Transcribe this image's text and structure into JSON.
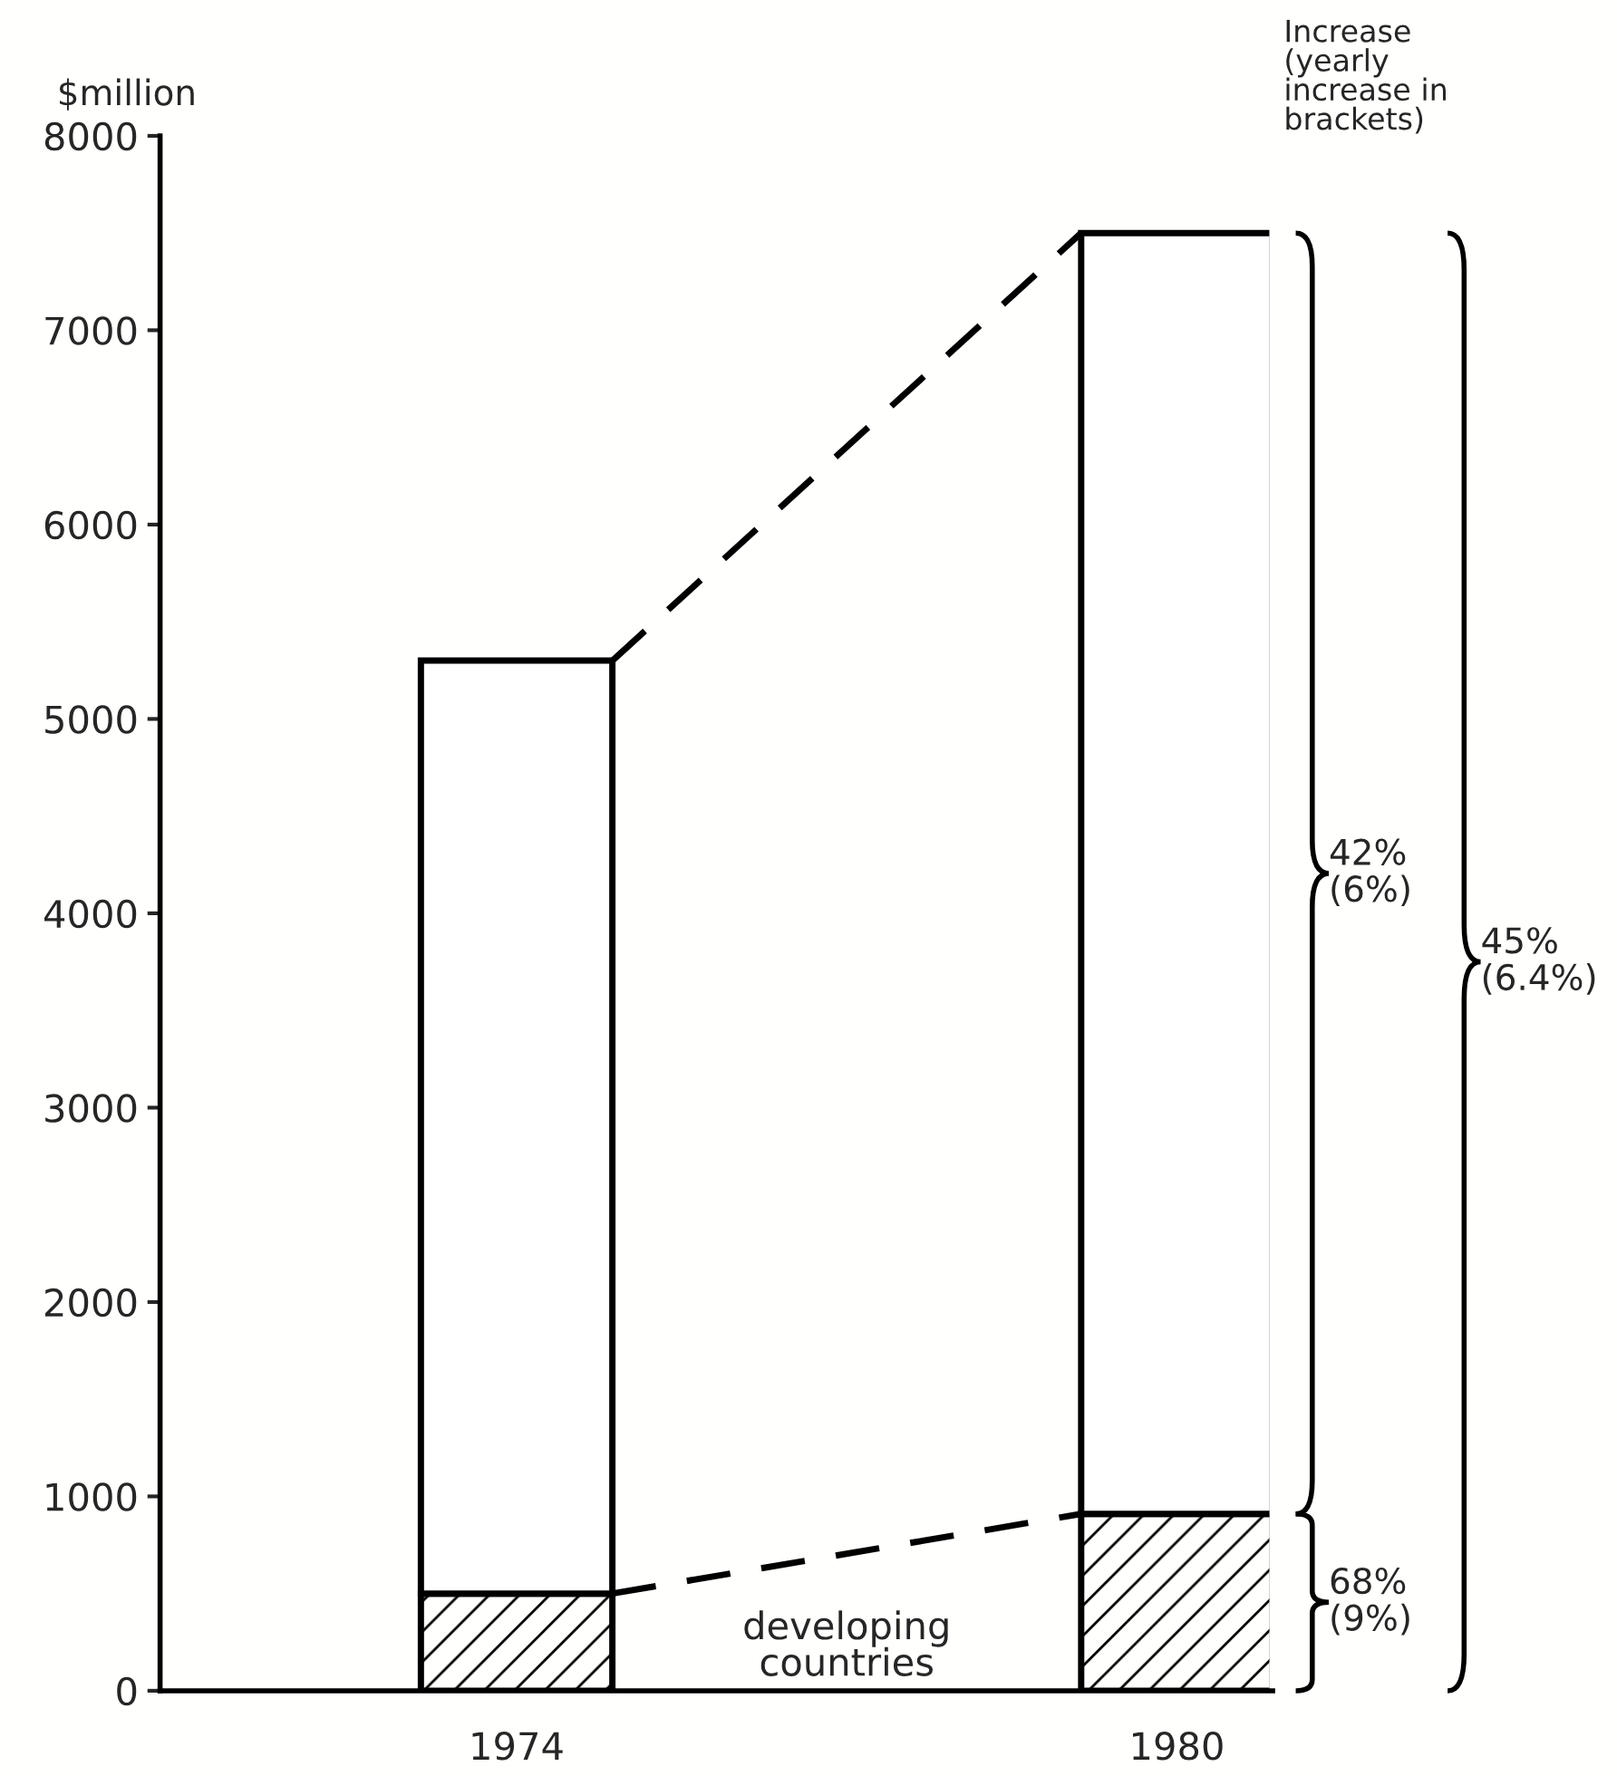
{
  "chart_data": {
    "type": "bar",
    "stacked": true,
    "ylabel": "$million",
    "categories": [
      "1974",
      "1980"
    ],
    "series": [
      {
        "name": "developing countries",
        "color": "#000000",
        "values": [
          500,
          910
        ]
      },
      {
        "color": "#ffffff",
        "values": [
          4800,
          6590
        ]
      }
    ],
    "ylim": [
      0,
      8000
    ],
    "yticks": [
      0,
      1000,
      2000,
      3000,
      4000,
      5000,
      6000,
      7000,
      8000
    ],
    "grid": false,
    "legend": false,
    "line_style": "dashed",
    "annotations": [
      "Increase\n(yearly\nincrease in\nbrackets)",
      "42%\n(6%)",
      "68%\n(9%)",
      "45%\n(6.4%)"
    ]
  }
}
